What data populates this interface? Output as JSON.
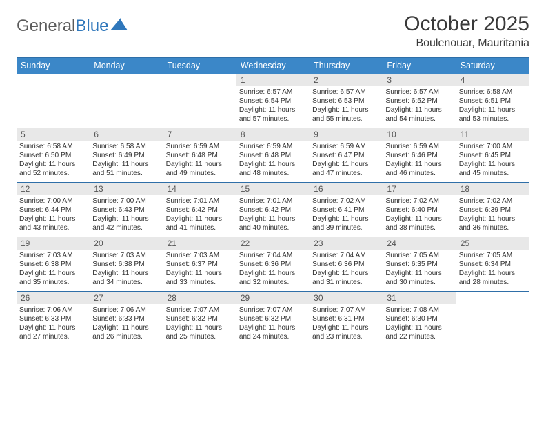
{
  "logo": {
    "text1": "General",
    "text2": "Blue"
  },
  "title": "October 2025",
  "location": "Boulenouar, Mauritania",
  "colors": {
    "header_bg": "#3b87c8",
    "header_border": "#2f6fa8",
    "daynum_bg": "#e8e8e8",
    "text": "#3a3a3a"
  },
  "weekdays": [
    "Sunday",
    "Monday",
    "Tuesday",
    "Wednesday",
    "Thursday",
    "Friday",
    "Saturday"
  ],
  "weeks": [
    [
      {
        "n": "",
        "lines": []
      },
      {
        "n": "",
        "lines": []
      },
      {
        "n": "",
        "lines": []
      },
      {
        "n": "1",
        "lines": [
          "Sunrise: 6:57 AM",
          "Sunset: 6:54 PM",
          "Daylight: 11 hours and 57 minutes."
        ]
      },
      {
        "n": "2",
        "lines": [
          "Sunrise: 6:57 AM",
          "Sunset: 6:53 PM",
          "Daylight: 11 hours and 55 minutes."
        ]
      },
      {
        "n": "3",
        "lines": [
          "Sunrise: 6:57 AM",
          "Sunset: 6:52 PM",
          "Daylight: 11 hours and 54 minutes."
        ]
      },
      {
        "n": "4",
        "lines": [
          "Sunrise: 6:58 AM",
          "Sunset: 6:51 PM",
          "Daylight: 11 hours and 53 minutes."
        ]
      }
    ],
    [
      {
        "n": "5",
        "lines": [
          "Sunrise: 6:58 AM",
          "Sunset: 6:50 PM",
          "Daylight: 11 hours and 52 minutes."
        ]
      },
      {
        "n": "6",
        "lines": [
          "Sunrise: 6:58 AM",
          "Sunset: 6:49 PM",
          "Daylight: 11 hours and 51 minutes."
        ]
      },
      {
        "n": "7",
        "lines": [
          "Sunrise: 6:59 AM",
          "Sunset: 6:48 PM",
          "Daylight: 11 hours and 49 minutes."
        ]
      },
      {
        "n": "8",
        "lines": [
          "Sunrise: 6:59 AM",
          "Sunset: 6:48 PM",
          "Daylight: 11 hours and 48 minutes."
        ]
      },
      {
        "n": "9",
        "lines": [
          "Sunrise: 6:59 AM",
          "Sunset: 6:47 PM",
          "Daylight: 11 hours and 47 minutes."
        ]
      },
      {
        "n": "10",
        "lines": [
          "Sunrise: 6:59 AM",
          "Sunset: 6:46 PM",
          "Daylight: 11 hours and 46 minutes."
        ]
      },
      {
        "n": "11",
        "lines": [
          "Sunrise: 7:00 AM",
          "Sunset: 6:45 PM",
          "Daylight: 11 hours and 45 minutes."
        ]
      }
    ],
    [
      {
        "n": "12",
        "lines": [
          "Sunrise: 7:00 AM",
          "Sunset: 6:44 PM",
          "Daylight: 11 hours and 43 minutes."
        ]
      },
      {
        "n": "13",
        "lines": [
          "Sunrise: 7:00 AM",
          "Sunset: 6:43 PM",
          "Daylight: 11 hours and 42 minutes."
        ]
      },
      {
        "n": "14",
        "lines": [
          "Sunrise: 7:01 AM",
          "Sunset: 6:42 PM",
          "Daylight: 11 hours and 41 minutes."
        ]
      },
      {
        "n": "15",
        "lines": [
          "Sunrise: 7:01 AM",
          "Sunset: 6:42 PM",
          "Daylight: 11 hours and 40 minutes."
        ]
      },
      {
        "n": "16",
        "lines": [
          "Sunrise: 7:02 AM",
          "Sunset: 6:41 PM",
          "Daylight: 11 hours and 39 minutes."
        ]
      },
      {
        "n": "17",
        "lines": [
          "Sunrise: 7:02 AM",
          "Sunset: 6:40 PM",
          "Daylight: 11 hours and 38 minutes."
        ]
      },
      {
        "n": "18",
        "lines": [
          "Sunrise: 7:02 AM",
          "Sunset: 6:39 PM",
          "Daylight: 11 hours and 36 minutes."
        ]
      }
    ],
    [
      {
        "n": "19",
        "lines": [
          "Sunrise: 7:03 AM",
          "Sunset: 6:38 PM",
          "Daylight: 11 hours and 35 minutes."
        ]
      },
      {
        "n": "20",
        "lines": [
          "Sunrise: 7:03 AM",
          "Sunset: 6:38 PM",
          "Daylight: 11 hours and 34 minutes."
        ]
      },
      {
        "n": "21",
        "lines": [
          "Sunrise: 7:03 AM",
          "Sunset: 6:37 PM",
          "Daylight: 11 hours and 33 minutes."
        ]
      },
      {
        "n": "22",
        "lines": [
          "Sunrise: 7:04 AM",
          "Sunset: 6:36 PM",
          "Daylight: 11 hours and 32 minutes."
        ]
      },
      {
        "n": "23",
        "lines": [
          "Sunrise: 7:04 AM",
          "Sunset: 6:36 PM",
          "Daylight: 11 hours and 31 minutes."
        ]
      },
      {
        "n": "24",
        "lines": [
          "Sunrise: 7:05 AM",
          "Sunset: 6:35 PM",
          "Daylight: 11 hours and 30 minutes."
        ]
      },
      {
        "n": "25",
        "lines": [
          "Sunrise: 7:05 AM",
          "Sunset: 6:34 PM",
          "Daylight: 11 hours and 28 minutes."
        ]
      }
    ],
    [
      {
        "n": "26",
        "lines": [
          "Sunrise: 7:06 AM",
          "Sunset: 6:33 PM",
          "Daylight: 11 hours and 27 minutes."
        ]
      },
      {
        "n": "27",
        "lines": [
          "Sunrise: 7:06 AM",
          "Sunset: 6:33 PM",
          "Daylight: 11 hours and 26 minutes."
        ]
      },
      {
        "n": "28",
        "lines": [
          "Sunrise: 7:07 AM",
          "Sunset: 6:32 PM",
          "Daylight: 11 hours and 25 minutes."
        ]
      },
      {
        "n": "29",
        "lines": [
          "Sunrise: 7:07 AM",
          "Sunset: 6:32 PM",
          "Daylight: 11 hours and 24 minutes."
        ]
      },
      {
        "n": "30",
        "lines": [
          "Sunrise: 7:07 AM",
          "Sunset: 6:31 PM",
          "Daylight: 11 hours and 23 minutes."
        ]
      },
      {
        "n": "31",
        "lines": [
          "Sunrise: 7:08 AM",
          "Sunset: 6:30 PM",
          "Daylight: 11 hours and 22 minutes."
        ]
      },
      {
        "n": "",
        "lines": []
      }
    ]
  ]
}
